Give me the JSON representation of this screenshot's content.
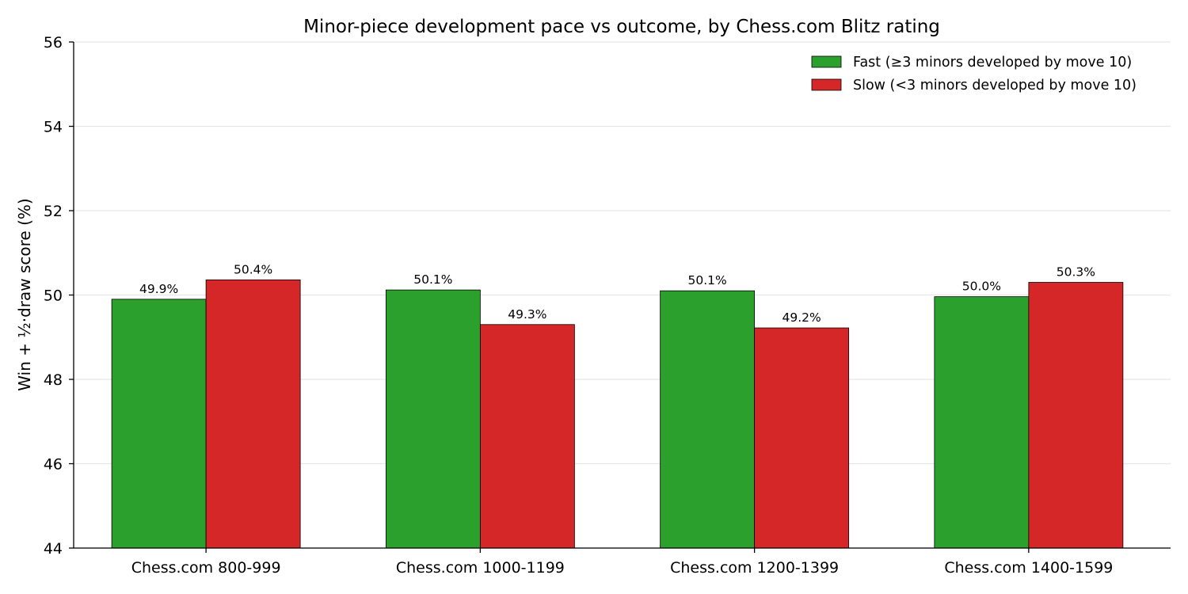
{
  "chart_data": {
    "type": "bar",
    "title": "Minor-piece development pace vs outcome, by Chess.com Blitz rating",
    "xlabel": "",
    "ylabel": "Win + ½·draw score (%)",
    "ylim": [
      44,
      56
    ],
    "yticks": [
      44,
      46,
      48,
      50,
      52,
      54,
      56
    ],
    "grid": "y",
    "legend_position": "top-right",
    "categories": [
      "Chess.com 800-999",
      "Chess.com 1000-1199",
      "Chess.com 1200-1399",
      "Chess.com 1400-1599"
    ],
    "series": [
      {
        "name": "Fast (≥3 minors developed by move 10)",
        "color": "#2ca02c",
        "values": [
          49.9,
          50.12,
          50.1,
          49.96
        ],
        "labels": [
          "49.9%",
          "50.1%",
          "50.1%",
          "50.0%"
        ]
      },
      {
        "name": "Slow (<3 minors developed by move 10)",
        "color": "#d62728",
        "values": [
          50.36,
          49.3,
          49.22,
          50.3
        ],
        "labels": [
          "50.4%",
          "49.3%",
          "49.2%",
          "50.3%"
        ]
      }
    ]
  }
}
